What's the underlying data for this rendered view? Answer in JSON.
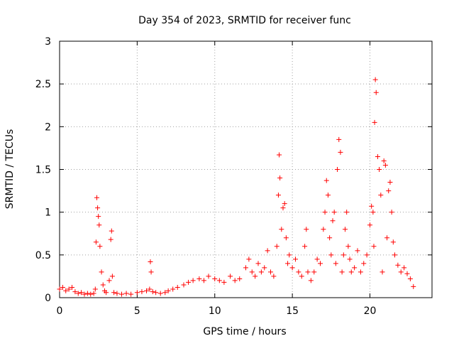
{
  "chart_data": {
    "type": "scatter",
    "title": "Day 354 of 2023, SRMTID for receiver func",
    "xlabel": "GPS time / hours",
    "ylabel": "SRMTID / TECUs",
    "xlim": [
      0,
      24
    ],
    "ylim": [
      0,
      3
    ],
    "xticks": [
      0,
      5,
      10,
      15,
      20
    ],
    "xtick_labels": [
      "0",
      "5",
      "10",
      "15",
      "20"
    ],
    "yticks": [
      0,
      0.5,
      1,
      1.5,
      2,
      2.5,
      3
    ],
    "ytick_labels": [
      "0",
      "0.5",
      "1",
      "1.5",
      "2",
      "2.5",
      "3"
    ],
    "grid": true,
    "marker": "+",
    "series": [
      {
        "name": "SRMTID",
        "color": "#ff0000",
        "x": [
          0.0,
          0.2,
          0.4,
          0.6,
          0.8,
          1.0,
          1.2,
          1.4,
          1.6,
          1.8,
          2.0,
          2.2,
          2.3,
          2.35,
          2.4,
          2.45,
          2.5,
          2.55,
          2.6,
          2.7,
          2.8,
          2.9,
          3.0,
          3.2,
          3.3,
          3.35,
          3.4,
          3.5,
          3.7,
          4.0,
          4.3,
          4.6,
          5.0,
          5.3,
          5.6,
          5.8,
          5.85,
          5.9,
          6.0,
          6.2,
          6.5,
          6.8,
          7.0,
          7.3,
          7.6,
          8.0,
          8.3,
          8.6,
          9.0,
          9.3,
          9.6,
          10.0,
          10.3,
          10.6,
          11.0,
          11.3,
          11.6,
          12.0,
          12.2,
          12.4,
          12.6,
          12.8,
          13.0,
          13.2,
          13.4,
          13.6,
          13.8,
          14.0,
          14.1,
          14.15,
          14.2,
          14.3,
          14.4,
          14.5,
          14.6,
          14.7,
          14.8,
          15.0,
          15.2,
          15.4,
          15.6,
          15.8,
          15.9,
          16.0,
          16.2,
          16.4,
          16.6,
          16.8,
          17.0,
          17.1,
          17.2,
          17.3,
          17.4,
          17.5,
          17.6,
          17.7,
          17.8,
          17.9,
          18.0,
          18.1,
          18.2,
          18.3,
          18.4,
          18.5,
          18.6,
          18.7,
          18.8,
          19.0,
          19.2,
          19.4,
          19.6,
          19.8,
          20.0,
          20.1,
          20.2,
          20.25,
          20.3,
          20.35,
          20.4,
          20.5,
          20.6,
          20.7,
          20.8,
          20.9,
          21.0,
          21.1,
          21.2,
          21.3,
          21.4,
          21.5,
          21.6,
          21.8,
          22.0,
          22.2,
          22.4,
          22.6,
          22.8
        ],
        "y": [
          0.1,
          0.12,
          0.08,
          0.1,
          0.12,
          0.07,
          0.05,
          0.06,
          0.04,
          0.05,
          0.04,
          0.05,
          0.1,
          0.65,
          1.17,
          1.05,
          0.95,
          0.85,
          0.6,
          0.3,
          0.15,
          0.08,
          0.06,
          0.2,
          0.68,
          0.78,
          0.25,
          0.06,
          0.05,
          0.04,
          0.05,
          0.04,
          0.06,
          0.07,
          0.08,
          0.1,
          0.42,
          0.3,
          0.07,
          0.06,
          0.05,
          0.06,
          0.08,
          0.1,
          0.12,
          0.15,
          0.18,
          0.2,
          0.22,
          0.2,
          0.25,
          0.22,
          0.2,
          0.18,
          0.25,
          0.2,
          0.22,
          0.35,
          0.45,
          0.3,
          0.25,
          0.4,
          0.3,
          0.35,
          0.55,
          0.3,
          0.25,
          0.6,
          1.2,
          1.67,
          1.4,
          0.8,
          1.05,
          1.1,
          0.7,
          0.4,
          0.5,
          0.35,
          0.45,
          0.3,
          0.25,
          0.6,
          0.8,
          0.3,
          0.2,
          0.3,
          0.45,
          0.4,
          0.8,
          1.0,
          1.37,
          1.2,
          0.7,
          0.5,
          0.9,
          1.0,
          0.4,
          1.5,
          1.85,
          1.7,
          0.3,
          0.5,
          0.8,
          1.0,
          0.6,
          0.45,
          0.3,
          0.35,
          0.55,
          0.3,
          0.4,
          0.5,
          0.85,
          1.07,
          1.0,
          0.6,
          2.05,
          2.55,
          2.4,
          1.65,
          1.5,
          1.2,
          0.3,
          1.6,
          1.55,
          0.7,
          1.25,
          1.35,
          1.0,
          0.65,
          0.5,
          0.38,
          0.3,
          0.35,
          0.28,
          0.22,
          0.13
        ]
      }
    ]
  }
}
